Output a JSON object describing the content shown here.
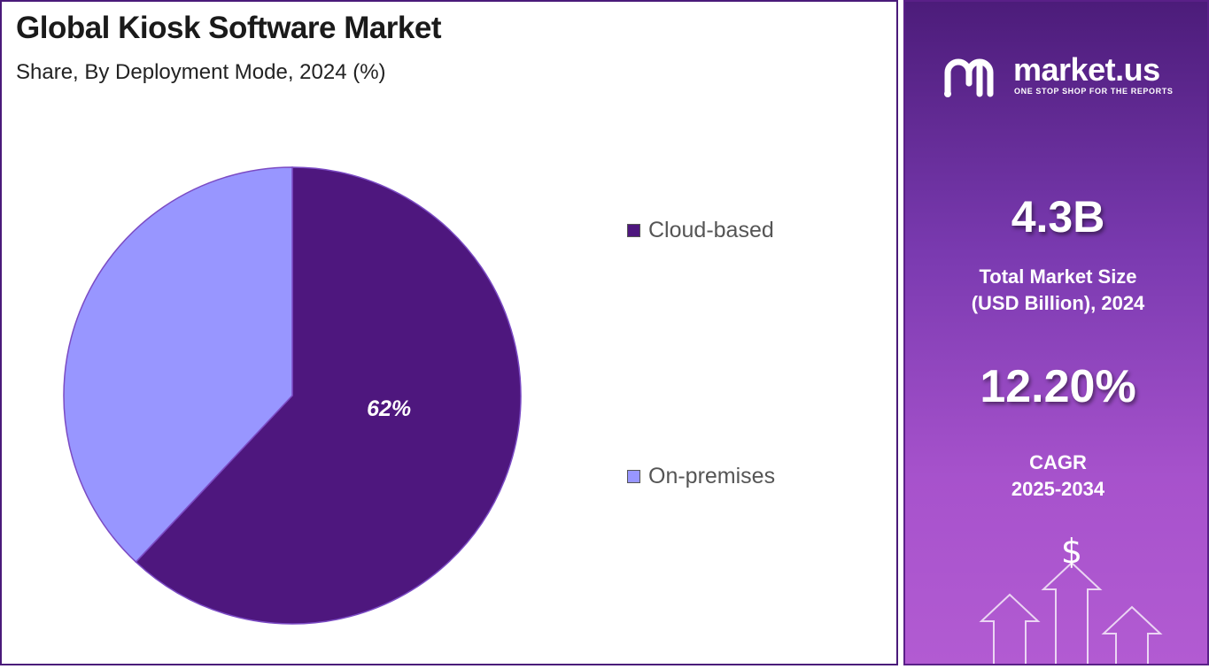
{
  "header": {
    "title": "Global Kiosk Software Market",
    "subtitle": "Share, By Deployment Mode, 2024 (%)"
  },
  "chart_data": {
    "type": "pie",
    "title": "Global Kiosk Software Market",
    "subtitle": "Share, By Deployment Mode, 2024 (%)",
    "categories": [
      "Cloud-based",
      "On-premises"
    ],
    "values": [
      62,
      38
    ],
    "colors": [
      "#4e177e",
      "#9896ff"
    ],
    "data_labels": [
      "62%",
      ""
    ],
    "legend_placement": "right"
  },
  "sidebar": {
    "brand_name": "market.us",
    "brand_tagline": "ONE STOP SHOP FOR THE REPORTS",
    "market_size_value": "4.3B",
    "market_size_label_line1": "Total Market Size",
    "market_size_label_line2": "(USD Billion), 2024",
    "cagr_value": "12.20%",
    "cagr_label_line1": "CAGR",
    "cagr_label_line2": "2025-2034",
    "currency_symbol": "$"
  }
}
